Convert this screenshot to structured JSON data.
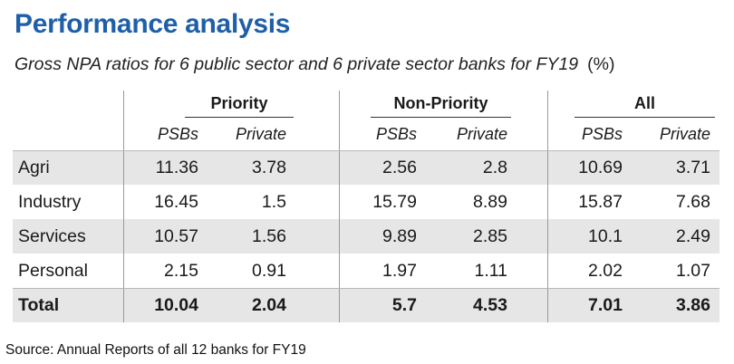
{
  "title": "Performance analysis",
  "subtitle": "Gross NPA ratios for 6 public sector and 6 private sector banks for FY19",
  "unit": "(%)",
  "source": "Source: Annual Reports of all 12 banks for FY19",
  "chart_data": {
    "type": "table",
    "column_groups": [
      "Priority",
      "Non-Priority",
      "All"
    ],
    "sub_columns": [
      "PSBs",
      "Private",
      "PSBs",
      "Private",
      "PSBs",
      "Private"
    ],
    "rows": [
      {
        "label": "Agri",
        "values": [
          "11.36",
          "3.78",
          "2.56",
          "2.8",
          "10.69",
          "3.71"
        ]
      },
      {
        "label": "Industry",
        "values": [
          "16.45",
          "1.5",
          "15.79",
          "8.89",
          "15.87",
          "7.68"
        ]
      },
      {
        "label": "Services",
        "values": [
          "10.57",
          "1.56",
          "9.89",
          "2.85",
          "10.1",
          "2.49"
        ]
      },
      {
        "label": "Personal",
        "values": [
          "2.15",
          "0.91",
          "1.97",
          "1.11",
          "2.02",
          "1.07"
        ]
      },
      {
        "label": "Total",
        "values": [
          "10.04",
          "2.04",
          "5.7",
          "4.53",
          "7.01",
          "3.86"
        ]
      }
    ]
  }
}
